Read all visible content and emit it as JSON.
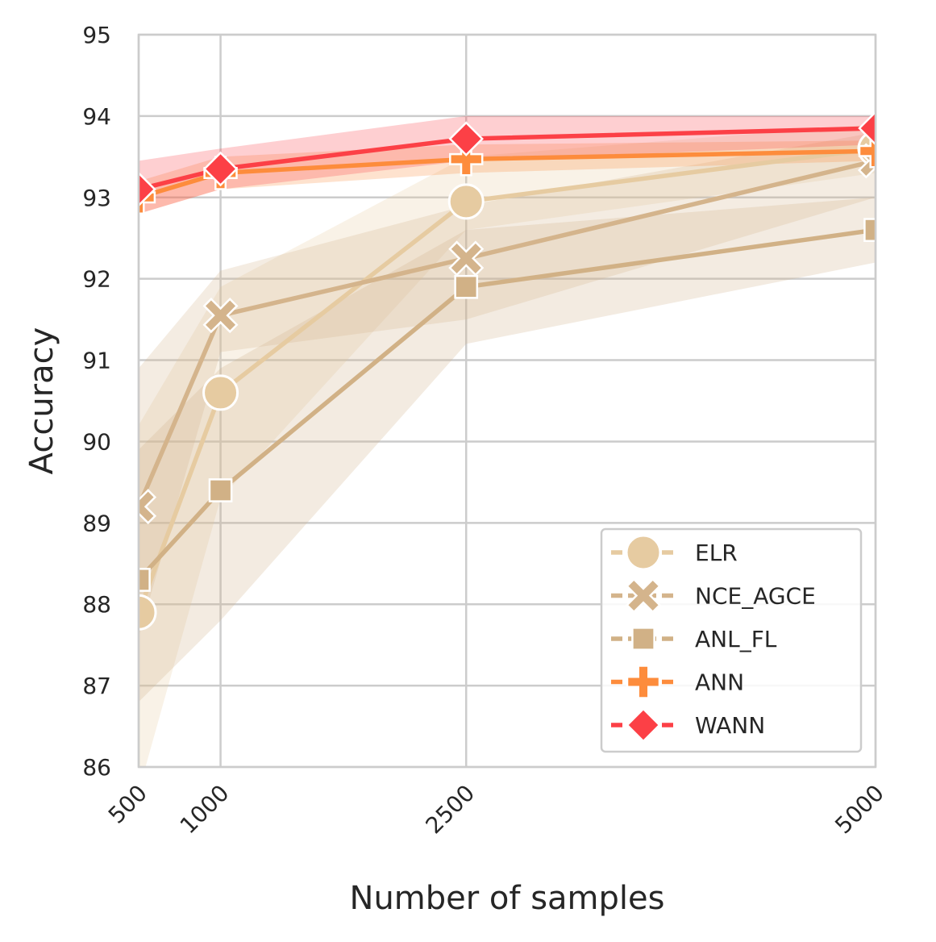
{
  "chart_data": {
    "type": "line",
    "title": "",
    "xlabel": "Number of samples",
    "ylabel": "Accuracy",
    "x": [
      500,
      1000,
      2500,
      5000
    ],
    "x_tick_labels": [
      "500",
      "1000",
      "2500",
      "5000"
    ],
    "xlim": [
      500,
      5000
    ],
    "ylim": [
      86,
      95
    ],
    "y_ticks": [
      86,
      87,
      88,
      89,
      90,
      91,
      92,
      93,
      94,
      95
    ],
    "grid": true,
    "legend_position": "lower-right",
    "series": [
      {
        "name": "ELR",
        "color": "#e6cba1",
        "marker": "circle",
        "values": [
          87.9,
          90.6,
          92.95,
          93.6
        ],
        "lower": [
          85.7,
          89.3,
          92.6,
          93.3
        ],
        "upper": [
          90.2,
          91.9,
          93.5,
          93.9
        ]
      },
      {
        "name": "NCE_AGCE",
        "color": "#d4b48c",
        "marker": "x",
        "values": [
          89.2,
          91.55,
          92.25,
          93.45
        ],
        "lower": [
          87.6,
          91.1,
          91.5,
          93.0
        ],
        "upper": [
          90.9,
          92.1,
          92.9,
          93.8
        ]
      },
      {
        "name": "ANL_FL",
        "color": "#d1b186",
        "marker": "square",
        "values": [
          88.3,
          89.4,
          91.9,
          92.6
        ],
        "lower": [
          86.8,
          87.8,
          91.2,
          92.2
        ],
        "upper": [
          89.9,
          90.9,
          92.6,
          93.0
        ]
      },
      {
        "name": "ANN",
        "color": "#fd8c3c",
        "marker": "plus",
        "values": [
          93.0,
          93.3,
          93.47,
          93.57
        ],
        "lower": [
          92.8,
          93.1,
          93.3,
          93.45
        ],
        "upper": [
          93.2,
          93.5,
          93.65,
          93.7
        ]
      },
      {
        "name": "WANN",
        "color": "#fc4046",
        "marker": "diamond",
        "values": [
          93.1,
          93.35,
          93.72,
          93.85
        ],
        "lower": [
          92.8,
          93.1,
          93.45,
          93.65
        ],
        "upper": [
          93.45,
          93.6,
          94.0,
          94.0
        ]
      }
    ]
  }
}
